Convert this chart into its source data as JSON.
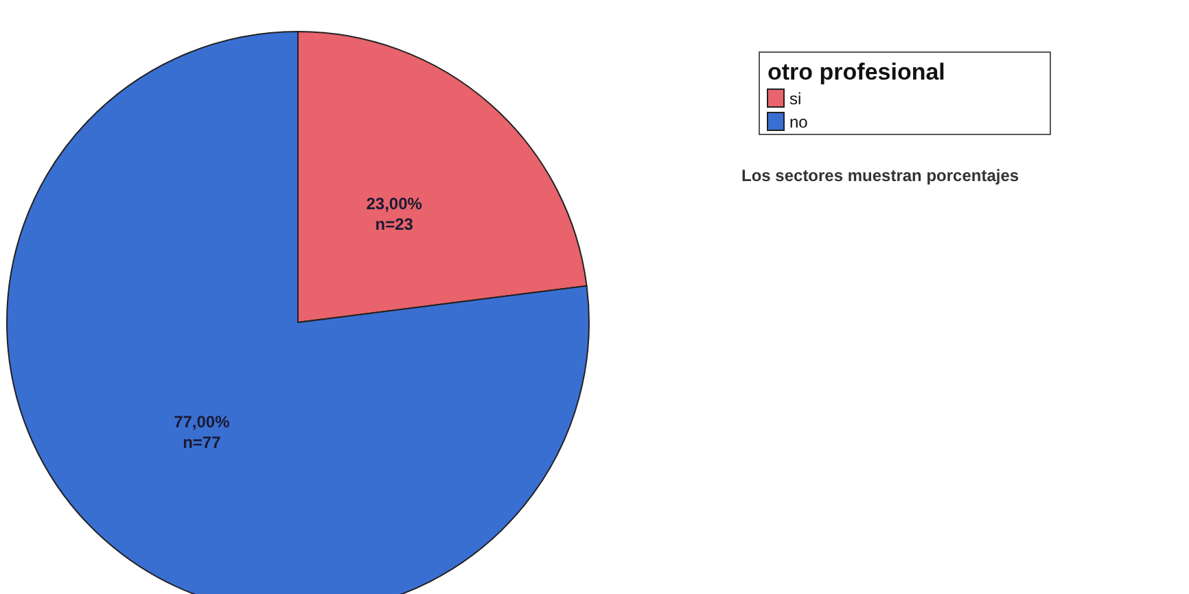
{
  "chart_data": {
    "type": "pie",
    "legend_title": "otro profesional",
    "categories": [
      "si",
      "no"
    ],
    "values": [
      23,
      77
    ],
    "colors": [
      "#e8636b",
      "#3a6fd2"
    ],
    "value_labels": [
      "23,00%\nn=23",
      "77,00%\nn=77"
    ],
    "legend": "top right",
    "annotations": [
      "Los sectores muestran porcentajes"
    ]
  }
}
